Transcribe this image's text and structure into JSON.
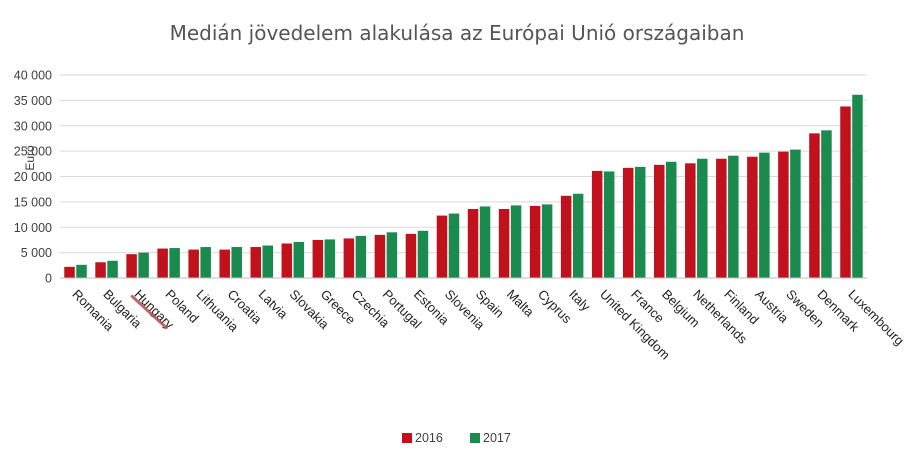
{
  "chart_data": {
    "type": "bar",
    "title": "Medián jövedelem alakulása az Európai Unió országaiban",
    "ylabel": "Euró",
    "xlabel": "",
    "ylim": [
      0,
      40000
    ],
    "yticks": [
      "0",
      "5 000",
      "10 000",
      "15 000",
      "20 000",
      "25 000",
      "30 000",
      "35 000",
      "40 000"
    ],
    "grid": true,
    "legend_position": "bottom",
    "highlighted_category": "Hungary",
    "highlight_color": "#b05050",
    "categories": [
      "Romania",
      "Bulgaria",
      "Hungary",
      "Poland",
      "Lithuania",
      "Croatia",
      "Latvia",
      "Slovakia",
      "Greece",
      "Czechia",
      "Portugal",
      "Estonia",
      "Slovenia",
      "Spain",
      "Malta",
      "Cyprus",
      "Italy",
      "United Kingdom",
      "France",
      "Belgium",
      "Netherlands",
      "Finland",
      "Austria",
      "Sweden",
      "Denmark",
      "Luxembourg"
    ],
    "series": [
      {
        "name": "2016",
        "color": "#c0111d",
        "values": [
          2200,
          3100,
          4700,
          5800,
          5600,
          5600,
          6100,
          6800,
          7500,
          7800,
          8500,
          8700,
          12300,
          13600,
          13600,
          14200,
          16200,
          21100,
          21700,
          22300,
          22600,
          23500,
          23900,
          24900,
          28500,
          33800
        ]
      },
      {
        "name": "2017",
        "color": "#1a8a4e",
        "values": [
          2600,
          3400,
          5000,
          5900,
          6100,
          6100,
          6400,
          7100,
          7600,
          8300,
          9000,
          9300,
          12700,
          14100,
          14300,
          14500,
          16600,
          21000,
          21900,
          22900,
          23500,
          24100,
          24700,
          25300,
          29100,
          36100
        ]
      }
    ]
  }
}
